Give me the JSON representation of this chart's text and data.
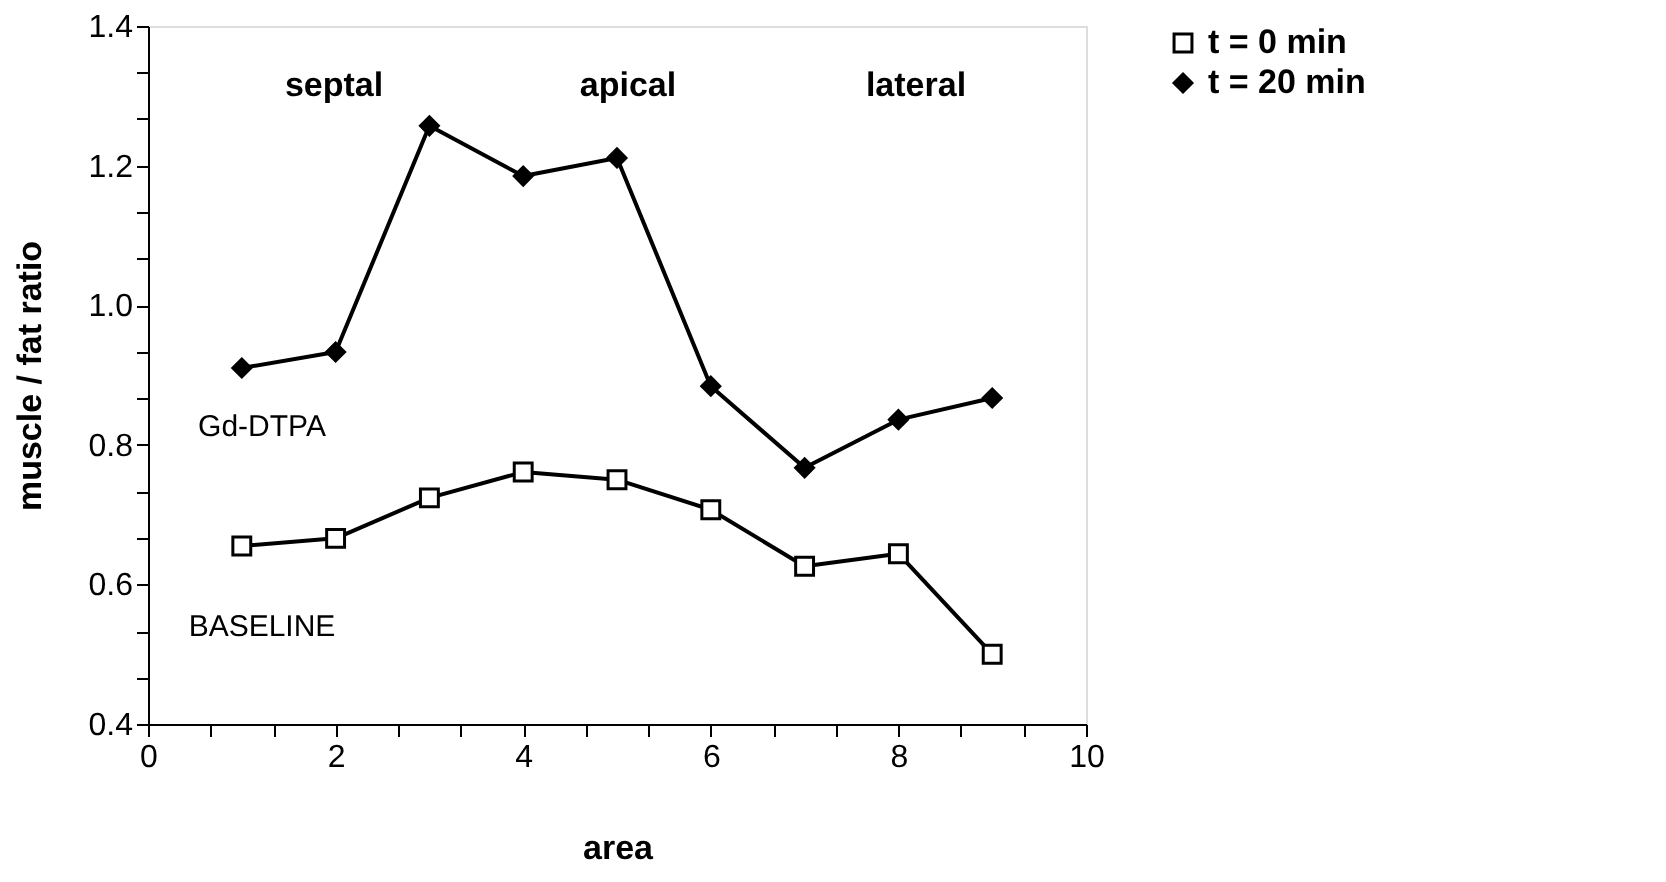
{
  "chart_data": {
    "type": "line",
    "xlabel": "area",
    "ylabel": "muscle  /  fat    ratio",
    "x": [
      1,
      2,
      3,
      4,
      5,
      6,
      7,
      8,
      9
    ],
    "series": [
      {
        "name": "t = 0 min",
        "color": "#000000",
        "marker": "square",
        "values": [
          0.655,
          0.666,
          0.724,
          0.761,
          0.75,
          0.707,
          0.626,
          0.644,
          0.5
        ]
      },
      {
        "name": "t = 20 min",
        "color": "#000000",
        "marker": "diamond",
        "values": [
          0.91,
          0.933,
          1.257,
          1.185,
          1.211,
          0.884,
          0.767,
          0.836,
          0.867
        ]
      }
    ],
    "xlim": [
      0,
      10
    ],
    "ylim": [
      0.4,
      1.4
    ],
    "xticks": [
      0,
      {
        "value": 0.667,
        "label": null
      },
      {
        "value": 1.333,
        "label": null
      },
      2,
      {
        "value": 2.667,
        "label": null
      },
      {
        "value": 3.333,
        "label": null
      },
      4,
      {
        "value": 4.667,
        "label": null
      },
      {
        "value": 5.333,
        "label": null
      },
      6,
      {
        "value": 6.667,
        "label": null
      },
      {
        "value": 7.333,
        "label": null
      },
      8,
      {
        "value": 8.667,
        "label": null
      },
      {
        "value": 9.333,
        "label": null
      },
      10
    ],
    "yticks": [
      {
        "value": 0.4,
        "label": "0.4"
      },
      {
        "value": 0.467,
        "label": null
      },
      {
        "value": 0.533,
        "label": null
      },
      {
        "value": 0.6,
        "label": "0.6"
      },
      {
        "value": 0.667,
        "label": null
      },
      {
        "value": 0.733,
        "label": null
      },
      {
        "value": 0.8,
        "label": "0.8"
      },
      {
        "value": 0.867,
        "label": null
      },
      {
        "value": 0.933,
        "label": null
      },
      {
        "value": 1.0,
        "label": "1.0"
      },
      {
        "value": 1.067,
        "label": null
      },
      {
        "value": 1.133,
        "label": null
      },
      {
        "value": 1.2,
        "label": "1.2"
      },
      {
        "value": 1.267,
        "label": null
      },
      {
        "value": 1.333,
        "label": null
      },
      {
        "value": 1.4,
        "label": "1.4"
      }
    ],
    "annotations": [
      "septal",
      "apical",
      "lateral",
      "Gd-DTPA",
      "BASELINE"
    ],
    "grid": false,
    "legend": "right",
    "line_style": "solid"
  }
}
